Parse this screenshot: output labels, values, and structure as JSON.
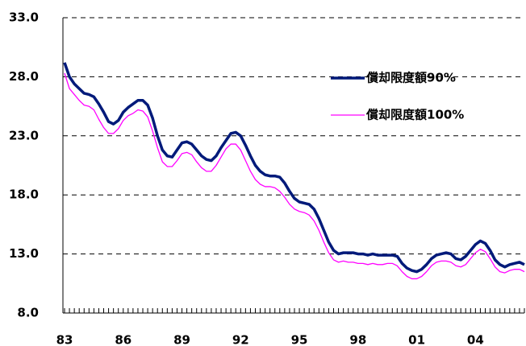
{
  "chart_data": {
    "type": "line",
    "categories": [
      "83",
      null,
      null,
      null,
      null,
      null,
      null,
      null,
      null,
      null,
      null,
      null,
      "86",
      null,
      null,
      null,
      null,
      null,
      null,
      null,
      null,
      null,
      null,
      null,
      "89",
      null,
      null,
      null,
      null,
      null,
      null,
      null,
      null,
      null,
      null,
      null,
      "92",
      null,
      null,
      null,
      null,
      null,
      null,
      null,
      null,
      null,
      null,
      null,
      "95",
      null,
      null,
      null,
      null,
      null,
      null,
      null,
      null,
      null,
      null,
      null,
      "98",
      null,
      null,
      null,
      null,
      null,
      null,
      null,
      null,
      null,
      null,
      null,
      "01",
      null,
      null,
      null,
      null,
      null,
      null,
      null,
      null,
      null,
      null,
      null,
      "04",
      null,
      null,
      null,
      null,
      null,
      null,
      null,
      null,
      null,
      null
    ],
    "series": [
      {
        "name": "償却限度額90%",
        "color": "#001a7a",
        "width": 3.5,
        "values": [
          29.2,
          28.0,
          27.4,
          27.0,
          26.6,
          26.5,
          26.3,
          25.7,
          25.0,
          24.2,
          24.0,
          24.3,
          25.0,
          25.4,
          25.7,
          26.0,
          26.0,
          25.6,
          24.5,
          23.0,
          21.8,
          21.3,
          21.2,
          21.8,
          22.4,
          22.5,
          22.3,
          21.8,
          21.3,
          21.0,
          20.9,
          21.3,
          22.0,
          22.6,
          23.2,
          23.3,
          23.0,
          22.2,
          21.3,
          20.5,
          20.0,
          19.7,
          19.6,
          19.6,
          19.5,
          19.0,
          18.3,
          17.7,
          17.4,
          17.3,
          17.2,
          16.8,
          16.0,
          15.0,
          14.0,
          13.3,
          13.0,
          13.1,
          13.1,
          13.1,
          13.0,
          13.0,
          12.9,
          13.0,
          12.9,
          12.9,
          12.9,
          12.9,
          12.8,
          12.2,
          11.8,
          11.6,
          11.5,
          11.7,
          12.1,
          12.6,
          12.9,
          13.0,
          13.1,
          13.0,
          12.6,
          12.5,
          12.8,
          13.3,
          13.8,
          14.1,
          13.9,
          13.3,
          12.5,
          12.1,
          11.9,
          12.1,
          12.2,
          12.3,
          12.1
        ]
      },
      {
        "name": "償却限度額100%",
        "color": "#ff00ff",
        "width": 1.3,
        "values": [
          28.3,
          27.0,
          26.5,
          26.0,
          25.6,
          25.5,
          25.2,
          24.4,
          23.7,
          23.2,
          23.2,
          23.6,
          24.3,
          24.7,
          24.9,
          25.2,
          25.1,
          24.6,
          23.4,
          22.0,
          20.8,
          20.4,
          20.4,
          20.9,
          21.5,
          21.6,
          21.4,
          20.8,
          20.3,
          20.0,
          20.0,
          20.5,
          21.2,
          21.9,
          22.3,
          22.3,
          21.8,
          20.9,
          20.0,
          19.3,
          18.9,
          18.7,
          18.7,
          18.6,
          18.3,
          17.8,
          17.2,
          16.8,
          16.6,
          16.5,
          16.3,
          15.8,
          15.0,
          14.0,
          13.1,
          12.5,
          12.3,
          12.4,
          12.3,
          12.3,
          12.2,
          12.2,
          12.1,
          12.2,
          12.1,
          12.1,
          12.2,
          12.2,
          12.0,
          11.5,
          11.1,
          10.9,
          10.9,
          11.1,
          11.5,
          12.0,
          12.3,
          12.4,
          12.4,
          12.3,
          12.0,
          11.9,
          12.1,
          12.6,
          13.1,
          13.4,
          13.2,
          12.6,
          11.9,
          11.5,
          11.4,
          11.6,
          11.7,
          11.7,
          11.5
        ]
      }
    ],
    "ylim": [
      8,
      33
    ],
    "yticks": [
      {
        "value": 8,
        "label": "8.0"
      },
      {
        "value": 13,
        "label": "13.0"
      },
      {
        "value": 18,
        "label": "18.0"
      },
      {
        "value": 23,
        "label": "23.0"
      },
      {
        "value": 28,
        "label": "28.0"
      },
      {
        "value": 33,
        "label": "33.0"
      }
    ],
    "grid": true,
    "legend": "right"
  }
}
